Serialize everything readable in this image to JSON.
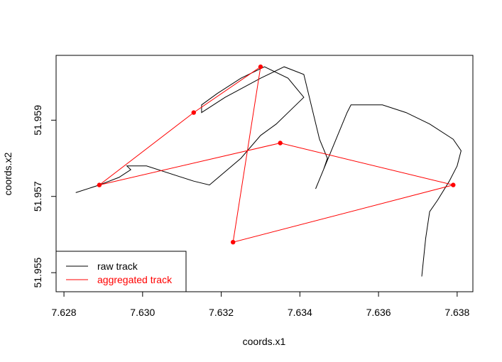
{
  "chart_data": {
    "type": "line",
    "xlabel": "coords.x1",
    "ylabel": "coords.x2",
    "xlim": [
      7.6278,
      7.6384
    ],
    "ylim": [
      51.9545,
      51.9607
    ],
    "x_ticks": [
      7.628,
      7.63,
      7.632,
      7.634,
      7.636,
      7.638
    ],
    "x_tick_labels": [
      "7.628",
      "7.630",
      "7.632",
      "7.634",
      "7.636",
      "7.638"
    ],
    "y_ticks": [
      51.955,
      51.957,
      51.959
    ],
    "y_tick_labels": [
      "51.955",
      "51.957",
      "51.959"
    ],
    "grid": false,
    "legend_position": "bottom-left",
    "series": [
      {
        "name": "raw track",
        "color": "#000000",
        "marker": "none",
        "x": [
          7.6283,
          7.6289,
          7.6294,
          7.6297,
          7.6296,
          7.6301,
          7.6313,
          7.6317,
          7.6325,
          7.633,
          7.6334,
          7.6338,
          7.6341,
          7.6337,
          7.6331,
          7.6325,
          7.6319,
          7.6315,
          7.6315,
          7.6315,
          7.6321,
          7.633,
          7.6336,
          7.6341,
          7.6345,
          7.6347,
          7.6346,
          7.6344,
          7.635,
          7.6352,
          7.6353,
          7.6356,
          7.6361,
          7.6367,
          7.6373,
          7.6379,
          7.6381,
          7.638,
          7.6378,
          7.6375,
          7.6373,
          7.6372,
          7.6371
        ],
        "y": [
          51.9571,
          51.9573,
          51.9575,
          51.9577,
          51.9578,
          51.9578,
          51.9574,
          51.9573,
          51.958,
          51.9586,
          51.9589,
          51.9593,
          51.9596,
          51.9601,
          51.9604,
          51.9601,
          51.9597,
          51.9594,
          51.9593,
          51.9592,
          51.9596,
          51.9601,
          51.9604,
          51.9602,
          51.9585,
          51.958,
          51.9577,
          51.9572,
          51.9587,
          51.9592,
          51.9594,
          51.9594,
          51.9594,
          51.9592,
          51.9589,
          51.9585,
          51.9582,
          51.9578,
          51.9574,
          51.9569,
          51.9566,
          51.9559,
          51.9549
        ]
      },
      {
        "name": "aggregated track",
        "color": "#ff0000",
        "marker": "circle",
        "x": [
          7.6289,
          7.6313,
          7.633,
          7.6323,
          7.6379,
          7.6335,
          7.6289
        ],
        "y": [
          51.9573,
          51.9592,
          51.9604,
          51.9558,
          51.9573,
          51.9584,
          51.9573
        ]
      }
    ]
  }
}
